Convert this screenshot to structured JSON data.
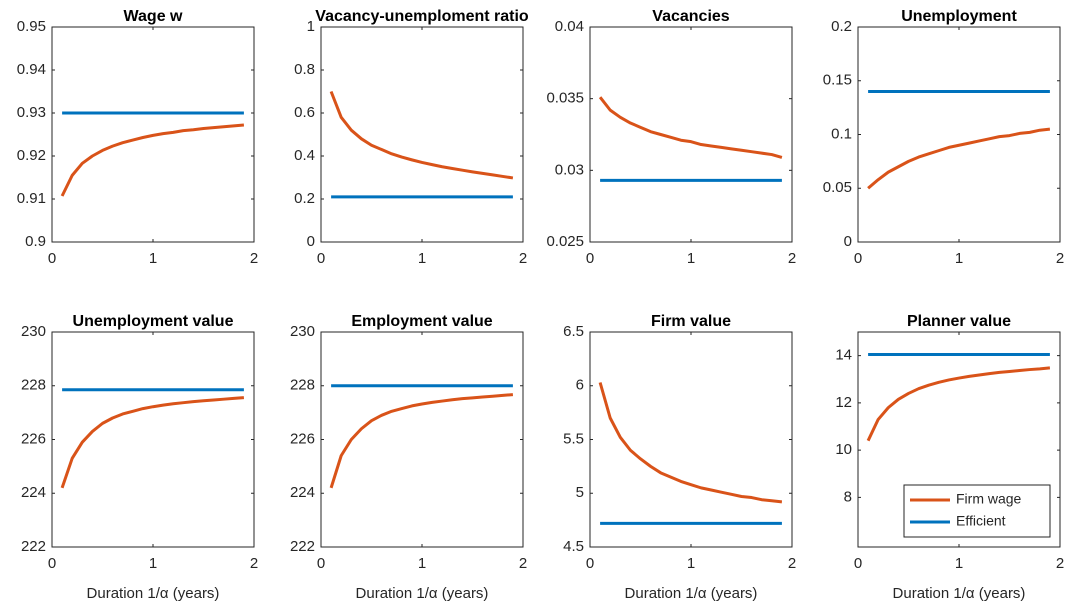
{
  "chart_data": [
    {
      "type": "line",
      "title": "Wage w",
      "xlim": [
        0,
        2
      ],
      "xticks": [
        0,
        1,
        2
      ],
      "ylim": [
        0.9,
        0.95
      ],
      "yticks": [
        0.9,
        0.91,
        0.92,
        0.93,
        0.94,
        0.95
      ],
      "x": [
        0.1,
        0.2,
        0.3,
        0.4,
        0.5,
        0.6,
        0.7,
        0.8,
        0.9,
        1.0,
        1.1,
        1.2,
        1.3,
        1.4,
        1.5,
        1.6,
        1.7,
        1.8,
        1.9
      ],
      "series": [
        {
          "color": "#D95319",
          "values": [
            0.9107,
            0.9155,
            0.9183,
            0.92,
            0.9213,
            0.9223,
            0.9231,
            0.9237,
            0.9243,
            0.9248,
            0.9252,
            0.9255,
            0.9259,
            0.9261,
            0.9264,
            0.9266,
            0.9268,
            0.927,
            0.9272
          ]
        },
        {
          "color": "#0072BD",
          "values": [
            0.93,
            0.93,
            0.93,
            0.93,
            0.93,
            0.93,
            0.93,
            0.93,
            0.93,
            0.93,
            0.93,
            0.93,
            0.93,
            0.93,
            0.93,
            0.93,
            0.93,
            0.93,
            0.93
          ]
        }
      ]
    },
    {
      "type": "line",
      "title": "Vacancy-unemploment ratio",
      "xlim": [
        0,
        2
      ],
      "xticks": [
        0,
        1,
        2
      ],
      "ylim": [
        0,
        1
      ],
      "yticks": [
        0,
        0.2,
        0.4,
        0.6,
        0.8,
        1
      ],
      "x": [
        0.1,
        0.2,
        0.3,
        0.4,
        0.5,
        0.6,
        0.7,
        0.8,
        0.9,
        1.0,
        1.1,
        1.2,
        1.3,
        1.4,
        1.5,
        1.6,
        1.7,
        1.8,
        1.9
      ],
      "series": [
        {
          "color": "#D95319",
          "values": [
            0.7,
            0.58,
            0.52,
            0.48,
            0.45,
            0.43,
            0.41,
            0.395,
            0.382,
            0.37,
            0.36,
            0.35,
            0.342,
            0.334,
            0.326,
            0.319,
            0.312,
            0.305,
            0.298
          ]
        },
        {
          "color": "#0072BD",
          "values": [
            0.21,
            0.21,
            0.21,
            0.21,
            0.21,
            0.21,
            0.21,
            0.21,
            0.21,
            0.21,
            0.21,
            0.21,
            0.21,
            0.21,
            0.21,
            0.21,
            0.21,
            0.21,
            0.21
          ]
        }
      ]
    },
    {
      "type": "line",
      "title": "Vacancies",
      "xlim": [
        0,
        2
      ],
      "xticks": [
        0,
        1,
        2
      ],
      "ylim": [
        0.025,
        0.04
      ],
      "yticks": [
        0.025,
        0.03,
        0.035,
        0.04
      ],
      "x": [
        0.1,
        0.2,
        0.3,
        0.4,
        0.5,
        0.6,
        0.7,
        0.8,
        0.9,
        1.0,
        1.1,
        1.2,
        1.3,
        1.4,
        1.5,
        1.6,
        1.7,
        1.8,
        1.9
      ],
      "series": [
        {
          "color": "#D95319",
          "values": [
            0.0351,
            0.0342,
            0.0337,
            0.0333,
            0.033,
            0.0327,
            0.0325,
            0.0323,
            0.0321,
            0.032,
            0.0318,
            0.0317,
            0.0316,
            0.0315,
            0.0314,
            0.0313,
            0.0312,
            0.0311,
            0.0309
          ]
        },
        {
          "color": "#0072BD",
          "values": [
            0.0293,
            0.0293,
            0.0293,
            0.0293,
            0.0293,
            0.0293,
            0.0293,
            0.0293,
            0.0293,
            0.0293,
            0.0293,
            0.0293,
            0.0293,
            0.0293,
            0.0293,
            0.0293,
            0.0293,
            0.0293,
            0.0293
          ]
        }
      ]
    },
    {
      "type": "line",
      "title": "Unemployment",
      "xlim": [
        0,
        2
      ],
      "xticks": [
        0,
        1,
        2
      ],
      "ylim": [
        0,
        0.2
      ],
      "yticks": [
        0,
        0.05,
        0.1,
        0.15,
        0.2
      ],
      "x": [
        0.1,
        0.2,
        0.3,
        0.4,
        0.5,
        0.6,
        0.7,
        0.8,
        0.9,
        1.0,
        1.1,
        1.2,
        1.3,
        1.4,
        1.5,
        1.6,
        1.7,
        1.8,
        1.9
      ],
      "series": [
        {
          "color": "#D95319",
          "values": [
            0.05,
            0.058,
            0.065,
            0.07,
            0.075,
            0.079,
            0.082,
            0.085,
            0.088,
            0.09,
            0.092,
            0.094,
            0.096,
            0.098,
            0.099,
            0.101,
            0.102,
            0.104,
            0.105
          ]
        },
        {
          "color": "#0072BD",
          "values": [
            0.14,
            0.14,
            0.14,
            0.14,
            0.14,
            0.14,
            0.14,
            0.14,
            0.14,
            0.14,
            0.14,
            0.14,
            0.14,
            0.14,
            0.14,
            0.14,
            0.14,
            0.14,
            0.14
          ]
        }
      ]
    },
    {
      "type": "line",
      "title": "Unemployment value",
      "xlabel": "Duration 1/α (years)",
      "xlim": [
        0,
        2
      ],
      "xticks": [
        0,
        1,
        2
      ],
      "ylim": [
        222,
        230
      ],
      "yticks": [
        222,
        224,
        226,
        228,
        230
      ],
      "x": [
        0.1,
        0.2,
        0.3,
        0.4,
        0.5,
        0.6,
        0.7,
        0.8,
        0.9,
        1.0,
        1.1,
        1.2,
        1.3,
        1.4,
        1.5,
        1.6,
        1.7,
        1.8,
        1.9
      ],
      "series": [
        {
          "color": "#D95319",
          "values": [
            224.2,
            225.3,
            225.9,
            226.3,
            226.6,
            226.8,
            226.95,
            227.05,
            227.15,
            227.22,
            227.28,
            227.33,
            227.37,
            227.41,
            227.44,
            227.47,
            227.5,
            227.53,
            227.56
          ]
        },
        {
          "color": "#0072BD",
          "values": [
            227.85,
            227.85,
            227.85,
            227.85,
            227.85,
            227.85,
            227.85,
            227.85,
            227.85,
            227.85,
            227.85,
            227.85,
            227.85,
            227.85,
            227.85,
            227.85,
            227.85,
            227.85,
            227.85
          ]
        }
      ]
    },
    {
      "type": "line",
      "title": "Employment value",
      "xlabel": "Duration 1/α (years)",
      "xlim": [
        0,
        2
      ],
      "xticks": [
        0,
        1,
        2
      ],
      "ylim": [
        222,
        230
      ],
      "yticks": [
        222,
        224,
        226,
        228,
        230
      ],
      "x": [
        0.1,
        0.2,
        0.3,
        0.4,
        0.5,
        0.6,
        0.7,
        0.8,
        0.9,
        1.0,
        1.1,
        1.2,
        1.3,
        1.4,
        1.5,
        1.6,
        1.7,
        1.8,
        1.9
      ],
      "series": [
        {
          "color": "#D95319",
          "values": [
            224.2,
            225.4,
            226.0,
            226.4,
            226.7,
            226.9,
            227.05,
            227.15,
            227.25,
            227.32,
            227.38,
            227.43,
            227.48,
            227.52,
            227.55,
            227.58,
            227.61,
            227.64,
            227.67
          ]
        },
        {
          "color": "#0072BD",
          "values": [
            228,
            228,
            228,
            228,
            228,
            228,
            228,
            228,
            228,
            228,
            228,
            228,
            228,
            228,
            228,
            228,
            228,
            228,
            228
          ]
        }
      ]
    },
    {
      "type": "line",
      "title": "Firm value",
      "xlabel": "Duration 1/α (years)",
      "xlim": [
        0,
        2
      ],
      "xticks": [
        0,
        1,
        2
      ],
      "ylim": [
        4.5,
        6.5
      ],
      "yticks": [
        4.5,
        5,
        5.5,
        6,
        6.5
      ],
      "x": [
        0.1,
        0.2,
        0.3,
        0.4,
        0.5,
        0.6,
        0.7,
        0.8,
        0.9,
        1.0,
        1.1,
        1.2,
        1.3,
        1.4,
        1.5,
        1.6,
        1.7,
        1.8,
        1.9
      ],
      "series": [
        {
          "color": "#D95319",
          "values": [
            6.03,
            5.7,
            5.52,
            5.4,
            5.32,
            5.25,
            5.19,
            5.15,
            5.11,
            5.08,
            5.05,
            5.03,
            5.01,
            4.99,
            4.97,
            4.96,
            4.94,
            4.93,
            4.92
          ]
        },
        {
          "color": "#0072BD",
          "values": [
            4.72,
            4.72,
            4.72,
            4.72,
            4.72,
            4.72,
            4.72,
            4.72,
            4.72,
            4.72,
            4.72,
            4.72,
            4.72,
            4.72,
            4.72,
            4.72,
            4.72,
            4.72,
            4.72
          ]
        }
      ]
    },
    {
      "type": "line",
      "title": "Planner value",
      "xlabel": "Duration 1/α (years)",
      "xlim": [
        0,
        2
      ],
      "xticks": [
        0,
        1,
        2
      ],
      "ylim": [
        5.9,
        15
      ],
      "yticks": [
        8,
        10,
        12,
        14
      ],
      "legend": "southeast",
      "x": [
        0.1,
        0.2,
        0.3,
        0.4,
        0.5,
        0.6,
        0.7,
        0.8,
        0.9,
        1.0,
        1.1,
        1.2,
        1.3,
        1.4,
        1.5,
        1.6,
        1.7,
        1.8,
        1.9
      ],
      "series": [
        {
          "name": "Firm wage",
          "color": "#D95319",
          "values": [
            10.4,
            11.3,
            11.8,
            12.15,
            12.4,
            12.6,
            12.75,
            12.87,
            12.97,
            13.05,
            13.12,
            13.18,
            13.24,
            13.29,
            13.33,
            13.37,
            13.41,
            13.44,
            13.48
          ]
        },
        {
          "name": "Efficient",
          "color": "#0072BD",
          "values": [
            14.05,
            14.05,
            14.05,
            14.05,
            14.05,
            14.05,
            14.05,
            14.05,
            14.05,
            14.05,
            14.05,
            14.05,
            14.05,
            14.05,
            14.05,
            14.05,
            14.05,
            14.05,
            14.05
          ]
        }
      ]
    }
  ]
}
